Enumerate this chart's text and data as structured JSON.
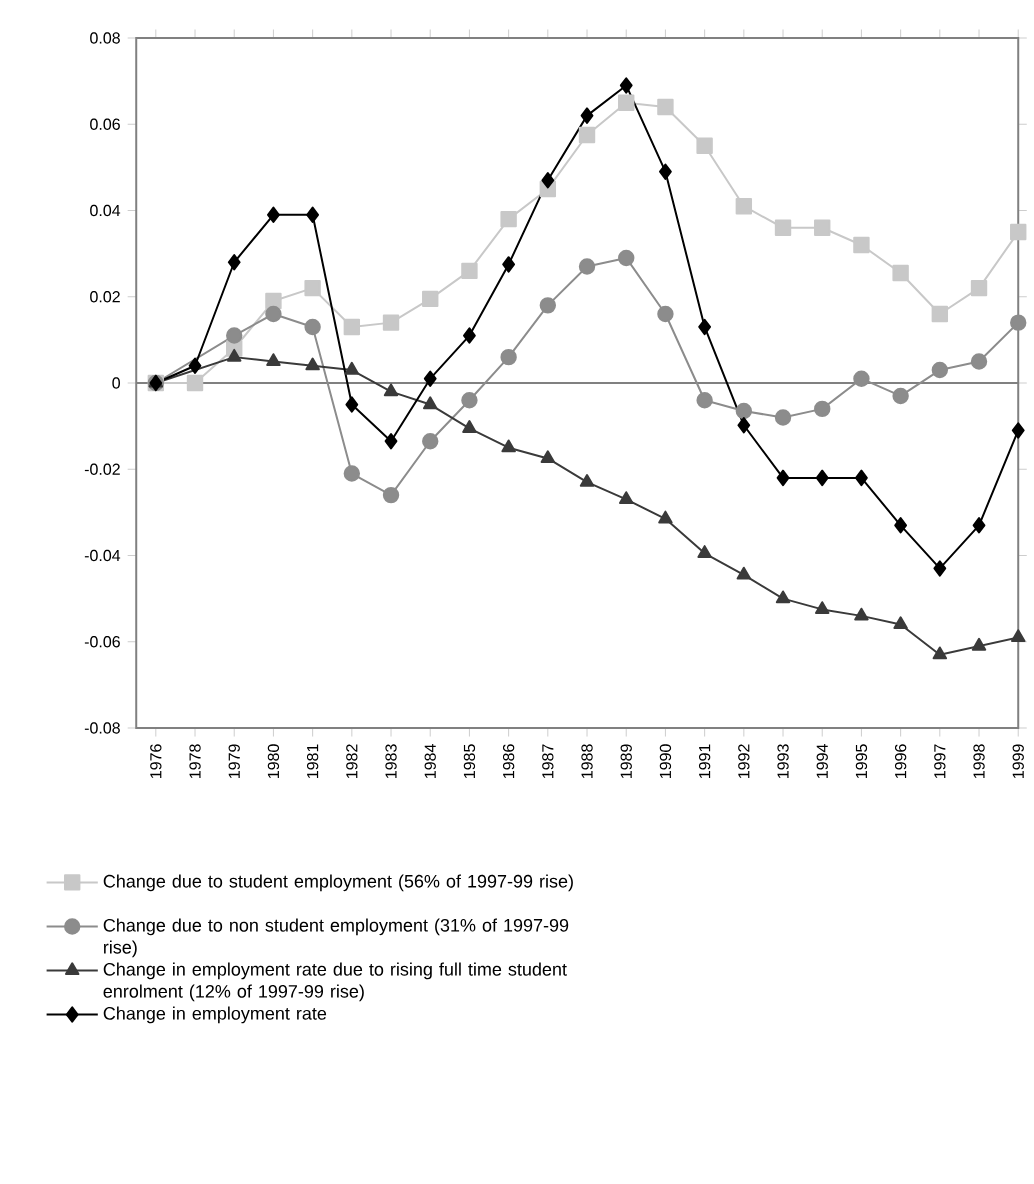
{
  "chart_data": {
    "type": "line",
    "categories": [
      "1976",
      "1978",
      "1979",
      "1980",
      "1981",
      "1982",
      "1983",
      "1984",
      "1985",
      "1986",
      "1987",
      "1988",
      "1989",
      "1990",
      "1991",
      "1992",
      "1993",
      "1994",
      "1995",
      "1996",
      "1997",
      "1998",
      "1999"
    ],
    "series": [
      {
        "name": "Change due to student employment (56% of 1997-99 rise)",
        "color": "#c8c8c8",
        "marker": "square",
        "values": [
          0,
          0,
          0.008,
          0.019,
          0.022,
          0.013,
          0.014,
          0.0195,
          0.026,
          0.038,
          0.045,
          0.0575,
          0.065,
          0.064,
          0.055,
          0.041,
          0.036,
          0.036,
          0.032,
          0.0255,
          0.016,
          0.022,
          0.035
        ]
      },
      {
        "name": "Change due to non student employment (31% of 1997-99 rise)",
        "color": "#8c8c8c",
        "marker": "circle",
        "values": [
          0,
          null,
          0.011,
          0.016,
          0.013,
          -0.021,
          -0.026,
          -0.0135,
          -0.004,
          0.006,
          0.018,
          0.027,
          0.029,
          0.016,
          -0.004,
          -0.0065,
          -0.008,
          -0.006,
          0.001,
          -0.003,
          0.003,
          0.005,
          0.014
        ]
      },
      {
        "name": "Change in employment rate due to rising full time student enrolment (12% of 1997-99 rise)",
        "color": "#3a3a3a",
        "marker": "triangle",
        "values": [
          0,
          null,
          0.006,
          0.005,
          0.004,
          0.003,
          -0.002,
          -0.005,
          -0.0105,
          -0.015,
          -0.0175,
          -0.023,
          -0.027,
          -0.0315,
          -0.0395,
          -0.0445,
          -0.05,
          -0.0525,
          -0.054,
          -0.056,
          -0.063,
          -0.061,
          -0.059
        ]
      },
      {
        "name": "Change in employment rate",
        "color": "#000000",
        "marker": "diamond",
        "values": [
          0,
          0.004,
          0.028,
          0.039,
          0.039,
          -0.005,
          -0.0135,
          0.001,
          0.011,
          0.0275,
          0.047,
          0.062,
          0.069,
          0.049,
          0.013,
          -0.0098,
          -0.022,
          -0.022,
          -0.022,
          -0.033,
          -0.043,
          -0.033,
          -0.011
        ]
      }
    ],
    "ylim": [
      -0.08,
      0.08
    ],
    "yticks": [
      -0.08,
      -0.06,
      -0.04,
      -0.02,
      0,
      0.02,
      0.04,
      0.06,
      0.08
    ],
    "ref_lines": [
      {
        "axis": "y",
        "value": 0
      }
    ],
    "legend": "bottom"
  }
}
